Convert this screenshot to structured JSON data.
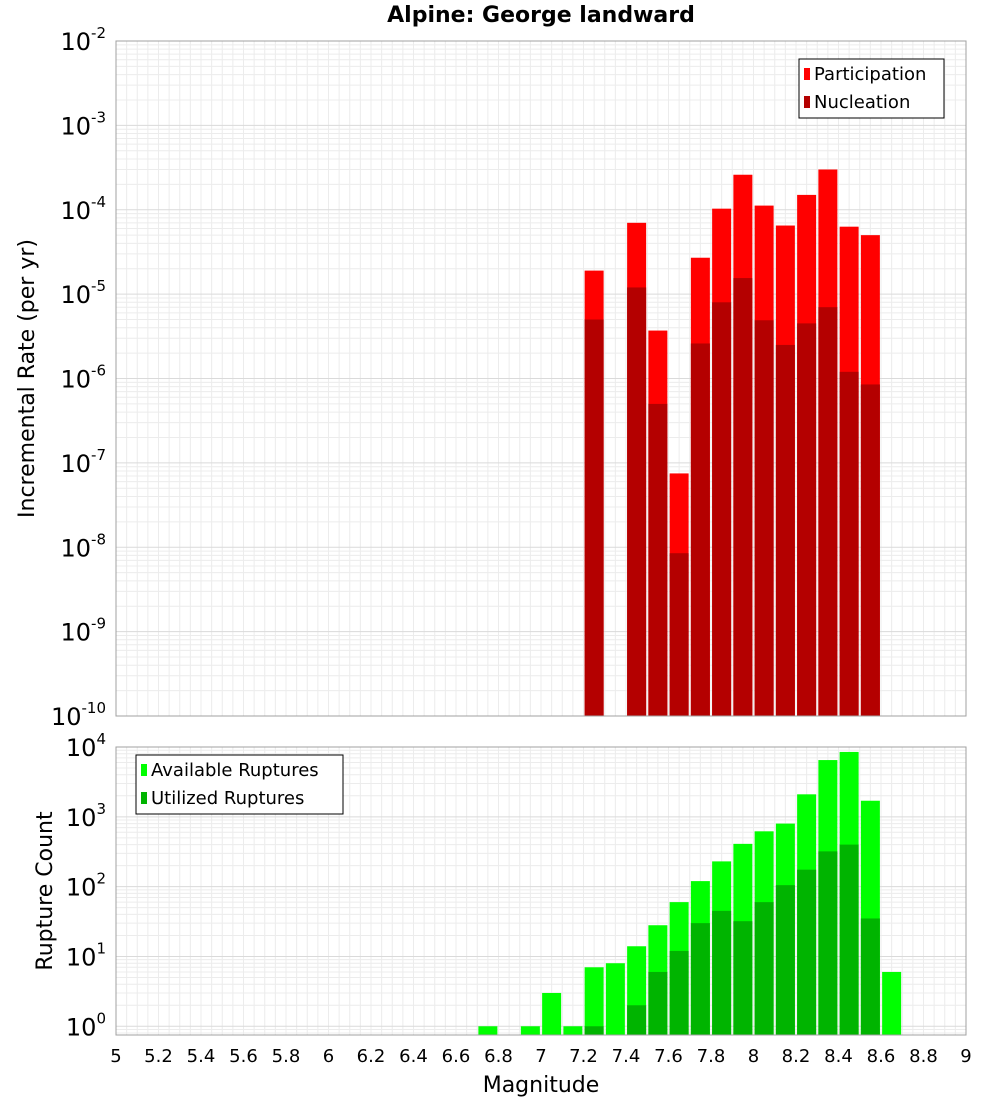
{
  "chart_data": [
    {
      "type": "bar",
      "title": "Alpine: George landward",
      "xlabel": "",
      "ylabel": "Incremental Rate (per yr)",
      "yscale": "log",
      "xlim": [
        5,
        9
      ],
      "ylim": [
        1e-10,
        0.01
      ],
      "ytick_exponents": [
        -10,
        -9,
        -8,
        -7,
        -6,
        -5,
        -4,
        -3,
        -2
      ],
      "grid": true,
      "legend_position": "top-right",
      "series": [
        {
          "name": "Participation",
          "color": "#ff0000",
          "x": [
            7.25,
            7.45,
            7.55,
            7.65,
            7.75,
            7.85,
            7.95,
            8.05,
            8.15,
            8.25,
            8.35,
            8.45,
            8.55
          ],
          "values": [
            1.9e-05,
            7e-05,
            3.7e-06,
            7.5e-08,
            2.7e-05,
            0.000103,
            0.00026,
            0.000112,
            6.5e-05,
            0.00015,
            0.0003,
            6.3e-05,
            5e-05
          ]
        },
        {
          "name": "Nucleation",
          "color": "#b40000",
          "x": [
            7.25,
            7.45,
            7.55,
            7.65,
            7.75,
            7.85,
            7.95,
            8.05,
            8.15,
            8.25,
            8.35,
            8.45,
            8.55
          ],
          "values": [
            5e-06,
            1.2e-05,
            5e-07,
            8.5e-09,
            2.6e-06,
            8e-06,
            1.55e-05,
            4.9e-06,
            2.5e-06,
            4.5e-06,
            7e-06,
            1.2e-06,
            8.5e-07
          ]
        }
      ]
    },
    {
      "type": "bar",
      "title": "",
      "xlabel": "Magnitude",
      "ylabel": "Rupture Count",
      "yscale": "log",
      "xlim": [
        5,
        9
      ],
      "ylim": [
        0.75,
        10000
      ],
      "ytick_exponents": [
        0,
        1,
        2,
        3,
        4
      ],
      "xticks": [
        "5",
        "5.2",
        "5.4",
        "5.6",
        "5.8",
        "6",
        "6.2",
        "6.4",
        "6.6",
        "6.8",
        "7",
        "7.2",
        "7.4",
        "7.6",
        "7.8",
        "8",
        "8.2",
        "8.4",
        "8.6",
        "8.8",
        "9"
      ],
      "grid": true,
      "legend_position": "top-left",
      "series": [
        {
          "name": "Available Ruptures",
          "color": "#00ff00",
          "x": [
            6.75,
            6.95,
            7.05,
            7.15,
            7.25,
            7.35,
            7.45,
            7.55,
            7.65,
            7.75,
            7.85,
            7.95,
            8.05,
            8.15,
            8.25,
            8.35,
            8.45,
            8.55,
            8.65
          ],
          "values": [
            1,
            1,
            3,
            1,
            7,
            8,
            14,
            28,
            60,
            120,
            230,
            410,
            620,
            800,
            2100,
            6500,
            8500,
            1700,
            6
          ]
        },
        {
          "name": "Utilized Ruptures",
          "color": "#00b400",
          "x": [
            7.25,
            7.45,
            7.55,
            7.65,
            7.75,
            7.85,
            7.95,
            8.05,
            8.15,
            8.25,
            8.35,
            8.45,
            8.55
          ],
          "values": [
            1,
            2,
            6,
            12,
            30,
            45,
            32,
            60,
            105,
            175,
            320,
            400,
            35
          ]
        }
      ]
    }
  ]
}
